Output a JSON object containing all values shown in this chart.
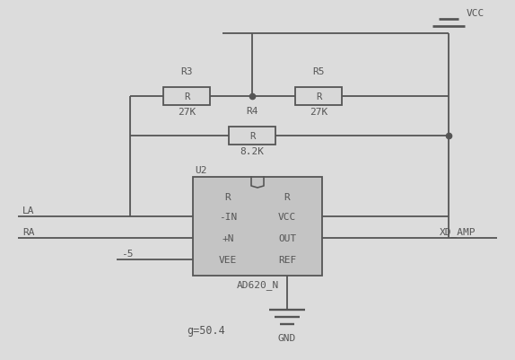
{
  "bg_color": "#dcdcdc",
  "line_color": "#555555",
  "box_fill": "#c0c0c0",
  "text_color": "#555555",
  "fig_width": 5.74,
  "fig_height": 4.02,
  "title": "g=50.4",
  "r3_label": "R3",
  "r3_val": "27K",
  "r4_label": "R4",
  "r4_val": "8.2K",
  "r5_label": "R5",
  "r5_val": "27K",
  "ic_label": "U2",
  "ic_name": "AD620_N",
  "port_la": "LA",
  "port_ra": "RA",
  "port_xd": "XD_AMP",
  "vcc_label": "VCC",
  "gnd_label": "GND",
  "neg5_label": "-5"
}
